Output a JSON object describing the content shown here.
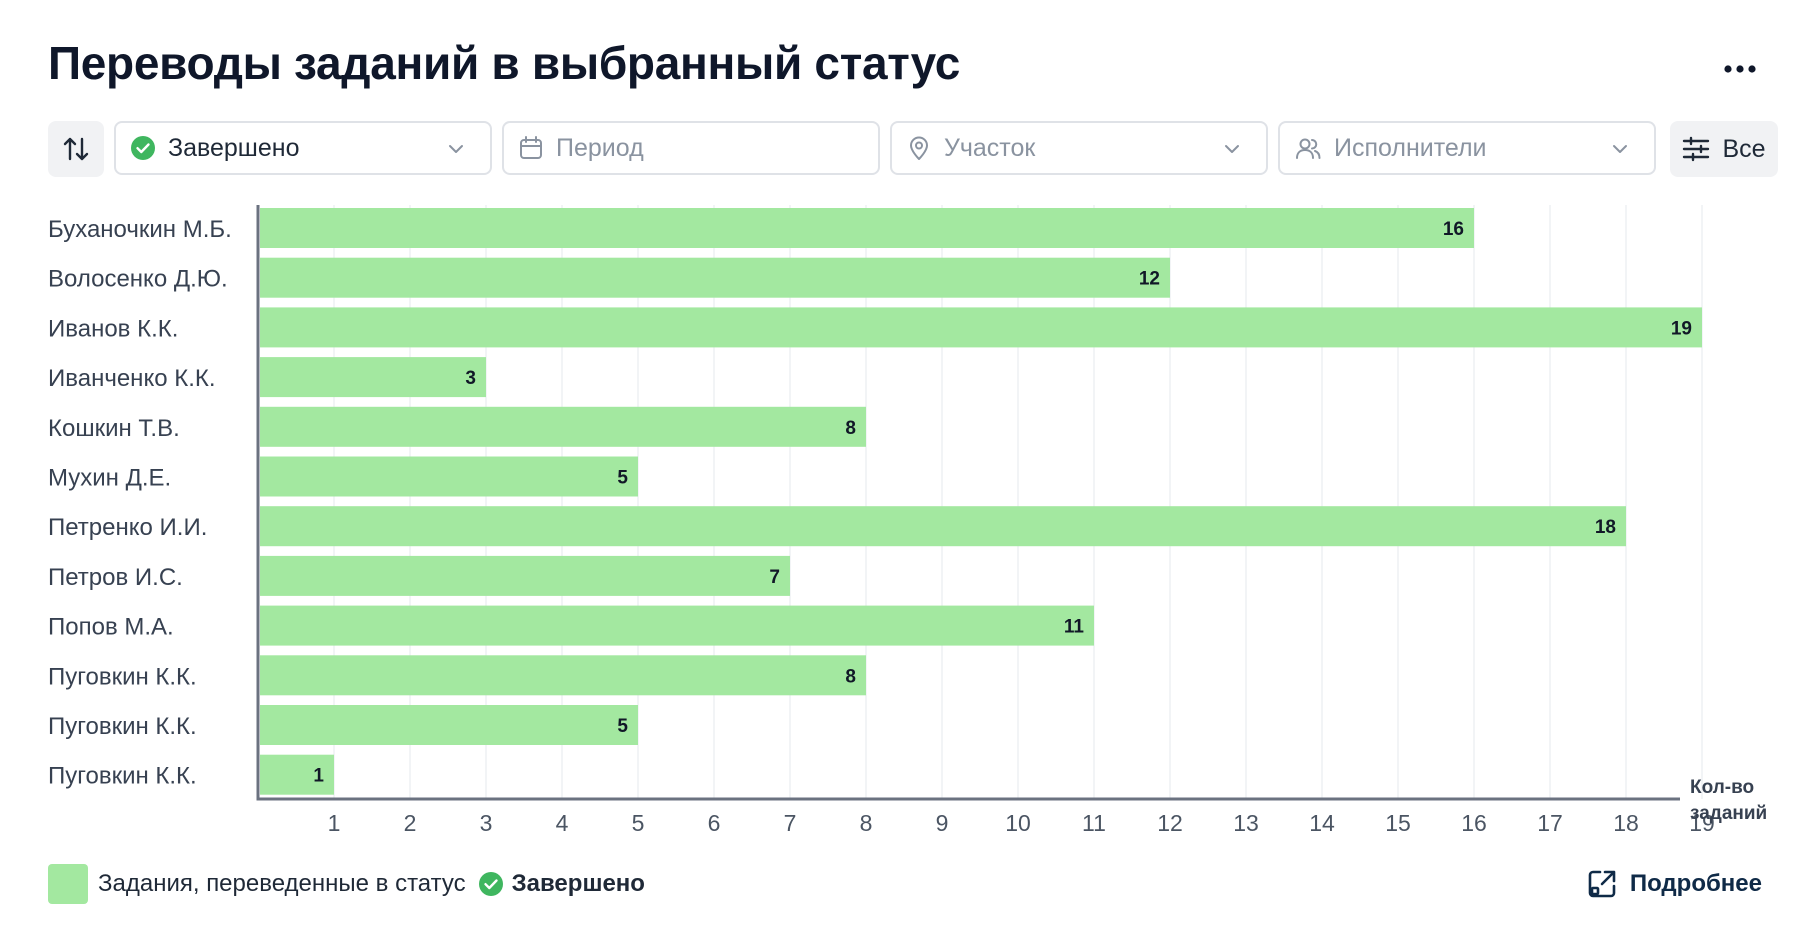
{
  "title": "Переводы заданий в выбранный статус",
  "toolbar": {
    "status_value": "Завершено",
    "period_placeholder": "Период",
    "site_placeholder": "Участок",
    "executors_placeholder": "Исполнители",
    "filter_label": "Все"
  },
  "colors": {
    "bar": "#a3e8a0",
    "status_green": "#3fb65f",
    "axis": "#6b7280",
    "grid": "#eef0f3"
  },
  "chart_data": {
    "type": "bar",
    "orientation": "horizontal",
    "categories": [
      "Буханочкин М.Б.",
      "Волосенко Д.Ю.",
      "Иванов К.К.",
      "Иванченко К.К.",
      "Кошкин Т.В.",
      "Мухин Д.Е.",
      "Петренко И.И.",
      "Петров И.С.",
      "Попов М.А.",
      "Пуговкин К.К.",
      "Пуговкин К.К.",
      "Пуговкин К.К."
    ],
    "values": [
      16,
      12,
      19,
      3,
      8,
      5,
      18,
      7,
      11,
      8,
      5,
      1
    ],
    "xlabel": [
      "Кол-во",
      "заданий"
    ],
    "xticks": [
      1,
      2,
      3,
      4,
      5,
      6,
      7,
      8,
      9,
      10,
      11,
      12,
      13,
      14,
      15,
      16,
      17,
      18,
      19
    ],
    "xlim": [
      0,
      19
    ],
    "grid": true,
    "data_labels": true
  },
  "legend": {
    "text": "Задания, переведенные в статус",
    "status": "Завершено"
  },
  "details_label": "Подробнее"
}
